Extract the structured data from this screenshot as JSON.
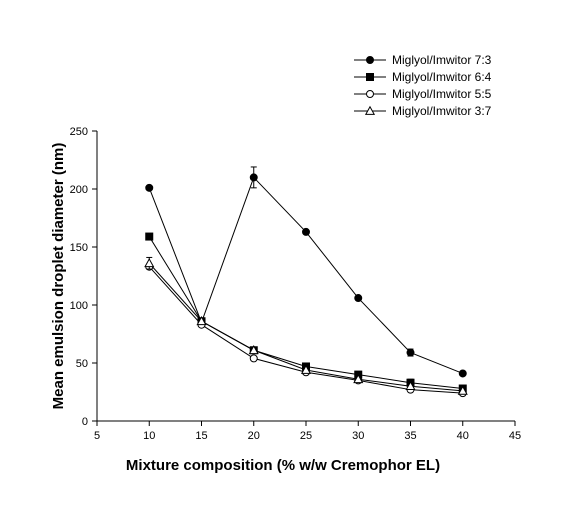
{
  "chart_data": {
    "type": "line",
    "xlabel": "Mixture composition (% w/w Cremophor EL)",
    "ylabel": "Mean emulsion droplet diameter (nm)",
    "xlim": [
      5,
      45
    ],
    "ylim": [
      0,
      250
    ],
    "xticks": [
      5,
      10,
      15,
      20,
      25,
      30,
      35,
      40,
      45
    ],
    "yticks": [
      0,
      50,
      100,
      150,
      200,
      250
    ],
    "x": [
      10,
      15,
      20,
      25,
      30,
      35,
      40
    ],
    "grid": false,
    "legend_position": "top-right",
    "series": [
      {
        "name": "Miglyol/Imwitor 7:3",
        "marker": "filled-circle",
        "values": [
          201,
          85,
          210,
          163,
          106,
          59,
          41
        ],
        "errors": [
          0,
          0,
          9,
          0,
          0,
          3,
          0
        ],
        "x": [
          10,
          15,
          20,
          25,
          30,
          35,
          40
        ]
      },
      {
        "name": "Miglyol/Imwitor 6:4",
        "marker": "filled-square",
        "values": [
          159,
          86,
          61,
          47,
          40,
          33,
          28
        ],
        "errors": [
          0,
          0,
          0,
          0,
          0,
          3,
          0
        ],
        "x": [
          10,
          15,
          20,
          25,
          30,
          35,
          40
        ]
      },
      {
        "name": "Miglyol/Imwitor 5:5",
        "marker": "open-circle",
        "values": [
          133,
          83,
          54,
          42,
          35,
          27,
          24
        ],
        "errors": [
          0,
          0,
          0,
          0,
          0,
          0,
          0
        ],
        "x": [
          10,
          15,
          20,
          25,
          30,
          35,
          40
        ]
      },
      {
        "name": "Miglyol/Imwitor 3:7",
        "marker": "open-triangle",
        "values": [
          136,
          86,
          61,
          44,
          36,
          30,
          26
        ],
        "errors": [
          5,
          0,
          0,
          0,
          0,
          0,
          0
        ],
        "x": [
          10,
          15,
          20,
          25,
          30,
          35,
          40
        ]
      }
    ]
  }
}
